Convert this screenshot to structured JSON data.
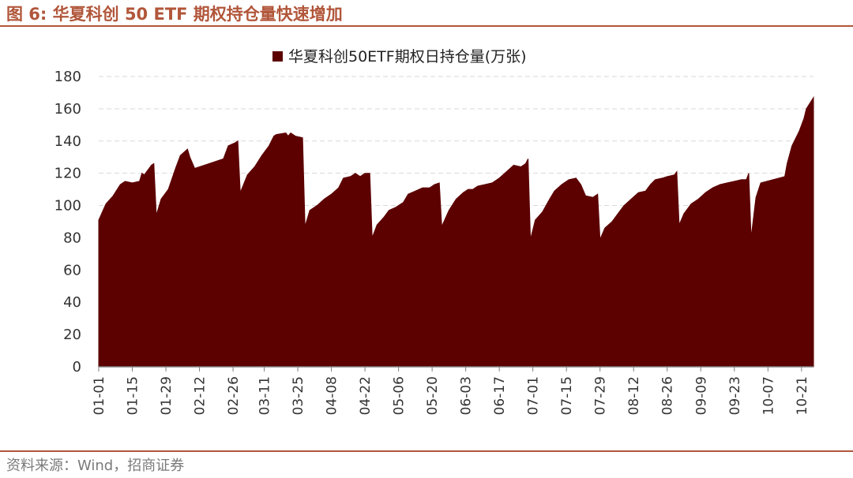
{
  "figure": {
    "title": "图 6: 华夏科创 50 ETF 期权持仓量快速增加",
    "source": "资料来源：Wind，招商证券"
  },
  "colors": {
    "accent": "#b1563a",
    "series": "#5c0000",
    "grid": "#d9d9d9"
  },
  "chart_data": {
    "type": "area",
    "title": "",
    "xlabel": "",
    "ylabel": "",
    "ylim": [
      0,
      180
    ],
    "yticks": [
      0,
      20,
      40,
      60,
      80,
      100,
      120,
      140,
      160,
      180
    ],
    "grid": true,
    "legend_position": "top-center",
    "x_tick_labels": [
      "01-01",
      "01-15",
      "01-29",
      "02-12",
      "02-26",
      "03-11",
      "03-25",
      "04-08",
      "04-22",
      "05-06",
      "05-20",
      "06-03",
      "06-17",
      "07-01",
      "07-15",
      "07-29",
      "08-12",
      "08-26",
      "09-09",
      "09-23",
      "10-07",
      "10-21"
    ],
    "series": [
      {
        "name": "华夏科创50ETF期权日持仓量(万张)",
        "points": [
          [
            "01-01",
            91
          ],
          [
            "01-04",
            101
          ],
          [
            "01-07",
            106
          ],
          [
            "01-10",
            113
          ],
          [
            "01-12",
            115
          ],
          [
            "01-15",
            114
          ],
          [
            "01-18",
            115
          ],
          [
            "01-19",
            120
          ],
          [
            "01-20",
            119
          ],
          [
            "01-21",
            121
          ],
          [
            "01-23",
            125
          ],
          [
            "01-24",
            126
          ],
          [
            "01-25",
            94
          ],
          [
            "01-27",
            104
          ],
          [
            "01-30",
            110
          ],
          [
            "02-02",
            123
          ],
          [
            "02-04",
            131
          ],
          [
            "02-07",
            135
          ],
          [
            "02-08",
            130
          ],
          [
            "02-10",
            123
          ],
          [
            "02-22",
            129
          ],
          [
            "02-24",
            137
          ],
          [
            "02-27",
            139
          ],
          [
            "02-28",
            140
          ],
          [
            "03-01",
            108
          ],
          [
            "03-04",
            119
          ],
          [
            "03-07",
            124
          ],
          [
            "03-10",
            131
          ],
          [
            "03-13",
            137
          ],
          [
            "03-15",
            143
          ],
          [
            "03-16",
            144
          ],
          [
            "03-20",
            145
          ],
          [
            "03-21",
            143
          ],
          [
            "03-22",
            145
          ],
          [
            "03-24",
            143
          ],
          [
            "03-27",
            142
          ],
          [
            "03-28",
            87
          ],
          [
            "03-30",
            97
          ],
          [
            "04-02",
            100
          ],
          [
            "04-05",
            104
          ],
          [
            "04-08",
            107
          ],
          [
            "04-11",
            111
          ],
          [
            "04-13",
            117
          ],
          [
            "04-16",
            118
          ],
          [
            "04-18",
            120
          ],
          [
            "04-20",
            118
          ],
          [
            "04-22",
            120
          ],
          [
            "04-24",
            120
          ],
          [
            "04-25",
            80
          ],
          [
            "04-27",
            88
          ],
          [
            "04-30",
            93
          ],
          [
            "05-02",
            97
          ],
          [
            "05-05",
            99
          ],
          [
            "05-08",
            102
          ],
          [
            "05-10",
            107
          ],
          [
            "05-13",
            109
          ],
          [
            "05-16",
            111
          ],
          [
            "05-19",
            111
          ],
          [
            "05-21",
            113
          ],
          [
            "05-23",
            114
          ],
          [
            "05-24",
            87
          ],
          [
            "05-27",
            97
          ],
          [
            "05-30",
            104
          ],
          [
            "06-02",
            108
          ],
          [
            "06-04",
            110
          ],
          [
            "06-06",
            110
          ],
          [
            "06-08",
            112
          ],
          [
            "06-11",
            113
          ],
          [
            "06-14",
            114
          ],
          [
            "06-17",
            117
          ],
          [
            "06-20",
            121
          ],
          [
            "06-23",
            125
          ],
          [
            "06-26",
            124
          ],
          [
            "06-28",
            126
          ],
          [
            "06-29",
            129
          ],
          [
            "06-30",
            79
          ],
          [
            "07-02",
            91
          ],
          [
            "07-05",
            96
          ],
          [
            "07-08",
            104
          ],
          [
            "07-10",
            109
          ],
          [
            "07-13",
            113
          ],
          [
            "07-16",
            116
          ],
          [
            "07-19",
            117
          ],
          [
            "07-21",
            113
          ],
          [
            "07-23",
            106
          ],
          [
            "07-26",
            105
          ],
          [
            "07-28",
            107
          ],
          [
            "07-29",
            79
          ],
          [
            "07-31",
            86
          ],
          [
            "08-03",
            90
          ],
          [
            "08-06",
            96
          ],
          [
            "08-08",
            100
          ],
          [
            "08-11",
            104
          ],
          [
            "08-14",
            108
          ],
          [
            "08-17",
            109
          ],
          [
            "08-19",
            113
          ],
          [
            "08-21",
            116
          ],
          [
            "08-24",
            117
          ],
          [
            "08-26",
            118
          ],
          [
            "08-29",
            119
          ],
          [
            "08-30",
            121
          ],
          [
            "08-31",
            88
          ],
          [
            "09-02",
            95
          ],
          [
            "09-05",
            101
          ],
          [
            "09-08",
            104
          ],
          [
            "09-11",
            108
          ],
          [
            "09-14",
            111
          ],
          [
            "09-17",
            113
          ],
          [
            "09-20",
            114
          ],
          [
            "09-23",
            115
          ],
          [
            "09-26",
            116
          ],
          [
            "09-28",
            116
          ],
          [
            "09-29",
            120
          ],
          [
            "09-30",
            80
          ],
          [
            "10-02",
            105
          ],
          [
            "10-04",
            114
          ],
          [
            "10-14",
            118
          ],
          [
            "10-15",
            126
          ],
          [
            "10-17",
            137
          ],
          [
            "10-20",
            146
          ],
          [
            "10-22",
            154
          ],
          [
            "10-23",
            160
          ],
          [
            "10-26",
            167
          ]
        ]
      }
    ]
  }
}
